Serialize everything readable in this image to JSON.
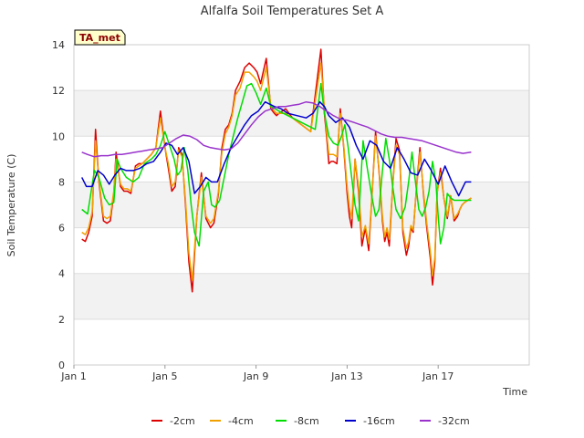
{
  "chart_data": {
    "type": "line",
    "title": "Alfalfa Soil Temperatures Set A",
    "xlabel": "Time",
    "ylabel": "Soil Temperature (C)",
    "tag": "TA_met",
    "xlim": [
      0,
      20
    ],
    "ylim": [
      0,
      14
    ],
    "y_ticks": [
      0,
      2,
      4,
      6,
      8,
      10,
      12,
      14
    ],
    "x_ticks": [
      {
        "value": 0,
        "label": "Jan 1"
      },
      {
        "value": 4,
        "label": "Jan 5"
      },
      {
        "value": 8,
        "label": "Jan 9"
      },
      {
        "value": 12,
        "label": "Jan 13"
      },
      {
        "value": 16,
        "label": "Jan 17"
      }
    ],
    "x_unit": "days since Jan 1",
    "grid": "horizontal bands",
    "legend_position": "bottom",
    "series": [
      {
        "name": "-2cm",
        "color": "#dd0000",
        "x": [
          0.35,
          0.5,
          0.65,
          0.8,
          0.95,
          1.1,
          1.3,
          1.45,
          1.6,
          1.75,
          1.85,
          1.95,
          2.05,
          2.2,
          2.35,
          2.5,
          2.7,
          2.85,
          3.0,
          3.2,
          3.4,
          3.6,
          3.8,
          4.0,
          4.15,
          4.3,
          4.45,
          4.6,
          4.75,
          4.9,
          5.05,
          5.2,
          5.4,
          5.6,
          5.8,
          6.0,
          6.15,
          6.35,
          6.5,
          6.65,
          6.8,
          6.95,
          7.1,
          7.3,
          7.5,
          7.7,
          7.9,
          8.05,
          8.2,
          8.45,
          8.65,
          8.8,
          8.9,
          9.0,
          9.15,
          9.3,
          9.6,
          10.0,
          10.4,
          10.85,
          11.0,
          11.1,
          11.2,
          11.3,
          11.4,
          11.55,
          11.7,
          11.85,
          12.0,
          12.1,
          12.2,
          12.35,
          12.5,
          12.65,
          12.8,
          12.95,
          13.1,
          13.25,
          13.4,
          13.55,
          13.65,
          13.75,
          13.85,
          14.0,
          14.15,
          14.3,
          14.45,
          14.6,
          14.7,
          14.8,
          14.9,
          15.05,
          15.2,
          15.35,
          15.5,
          15.65,
          15.75,
          15.85,
          15.95,
          16.1,
          16.25,
          16.4,
          16.55,
          16.7,
          16.85,
          16.95,
          17.05,
          17.15,
          17.3,
          17.45
        ],
        "values": [
          5.5,
          5.4,
          5.8,
          6.5,
          10.3,
          8.0,
          6.3,
          6.2,
          6.3,
          7.5,
          9.3,
          8.5,
          7.8,
          7.6,
          7.6,
          7.5,
          8.7,
          8.8,
          8.8,
          9.0,
          9.2,
          9.5,
          11.1,
          9.5,
          8.6,
          7.6,
          7.8,
          9.5,
          9.2,
          7.0,
          4.5,
          3.2,
          6.5,
          8.4,
          6.4,
          6.0,
          6.2,
          7.5,
          9.5,
          10.3,
          10.5,
          11.0,
          12.0,
          12.4,
          13.0,
          13.2,
          13.0,
          12.8,
          12.3,
          13.4,
          11.2,
          11.0,
          10.9,
          11.0,
          11.1,
          11.2,
          10.8,
          10.5,
          10.2,
          13.8,
          11.0,
          10.0,
          8.8,
          8.9,
          8.9,
          8.8,
          11.2,
          9.5,
          7.5,
          6.5,
          6.0,
          9.0,
          7.6,
          5.2,
          6.0,
          5.0,
          7.5,
          10.2,
          8.5,
          6.3,
          5.4,
          5.8,
          5.2,
          7.8,
          9.9,
          9.4,
          5.8,
          4.8,
          5.2,
          6.0,
          5.8,
          7.8,
          9.5,
          7.5,
          6.0,
          4.7,
          3.5,
          4.5,
          7.5,
          8.6,
          7.3,
          6.4,
          7.4,
          6.3,
          6.5,
          6.8,
          7.0,
          7.1,
          7.2,
          7.3
        ]
      },
      {
        "name": "-4cm",
        "color": "#f0a000",
        "x": [
          0.35,
          0.5,
          0.65,
          0.8,
          0.95,
          1.1,
          1.3,
          1.45,
          1.6,
          1.75,
          1.85,
          1.95,
          2.05,
          2.2,
          2.35,
          2.5,
          2.7,
          2.85,
          3.0,
          3.2,
          3.4,
          3.6,
          3.8,
          4.0,
          4.15,
          4.3,
          4.45,
          4.6,
          4.75,
          4.9,
          5.05,
          5.2,
          5.4,
          5.6,
          5.8,
          6.0,
          6.15,
          6.35,
          6.5,
          6.65,
          6.8,
          6.95,
          7.1,
          7.3,
          7.5,
          7.7,
          7.9,
          8.05,
          8.2,
          8.45,
          8.65,
          8.8,
          8.9,
          9.0,
          9.15,
          9.3,
          9.6,
          10.0,
          10.4,
          10.85,
          11.0,
          11.1,
          11.2,
          11.3,
          11.4,
          11.55,
          11.7,
          11.85,
          12.0,
          12.1,
          12.2,
          12.35,
          12.5,
          12.65,
          12.8,
          12.95,
          13.1,
          13.25,
          13.4,
          13.55,
          13.65,
          13.75,
          13.85,
          14.0,
          14.15,
          14.3,
          14.45,
          14.6,
          14.7,
          14.8,
          14.9,
          15.05,
          15.2,
          15.35,
          15.5,
          15.65,
          15.75,
          15.85,
          15.95,
          16.1,
          16.25,
          16.4,
          16.55,
          16.7,
          16.85,
          16.95,
          17.05,
          17.15,
          17.3,
          17.45
        ],
        "values": [
          5.8,
          5.7,
          6.0,
          6.7,
          9.8,
          8.1,
          6.5,
          6.4,
          6.5,
          7.6,
          9.0,
          8.5,
          7.9,
          7.7,
          7.7,
          7.6,
          8.6,
          8.7,
          8.8,
          9.0,
          9.2,
          9.5,
          10.8,
          9.5,
          8.8,
          7.8,
          8.0,
          9.4,
          9.1,
          7.2,
          4.9,
          3.7,
          6.5,
          8.2,
          6.5,
          6.2,
          6.4,
          7.6,
          9.3,
          10.1,
          10.4,
          10.9,
          11.8,
          12.1,
          12.8,
          12.8,
          12.6,
          12.4,
          12.0,
          13.0,
          11.3,
          11.1,
          11.0,
          11.0,
          11.0,
          11.0,
          10.8,
          10.5,
          10.2,
          13.2,
          11.2,
          10.2,
          9.2,
          9.2,
          9.2,
          9.1,
          11.0,
          9.6,
          7.8,
          6.9,
          6.4,
          9.0,
          7.8,
          5.6,
          6.1,
          5.3,
          7.5,
          10.0,
          8.6,
          6.5,
          5.6,
          6.0,
          5.5,
          7.8,
          9.6,
          9.2,
          6.0,
          5.1,
          5.4,
          6.1,
          5.9,
          7.7,
          9.3,
          7.6,
          6.2,
          5.0,
          3.9,
          4.7,
          7.5,
          8.4,
          7.3,
          6.5,
          7.4,
          6.4,
          6.6,
          6.8,
          7.0,
          7.1,
          7.2,
          7.3
        ]
      },
      {
        "name": "-8cm",
        "color": "#00dd00",
        "x": [
          0.35,
          0.6,
          0.9,
          1.1,
          1.35,
          1.55,
          1.75,
          1.9,
          2.05,
          2.3,
          2.6,
          2.85,
          3.1,
          3.4,
          3.6,
          3.8,
          4.0,
          4.2,
          4.4,
          4.55,
          4.7,
          4.85,
          5.0,
          5.15,
          5.3,
          5.5,
          5.7,
          5.9,
          6.05,
          6.2,
          6.4,
          6.6,
          6.8,
          7.0,
          7.2,
          7.4,
          7.6,
          7.8,
          8.0,
          8.2,
          8.45,
          8.65,
          8.85,
          9.0,
          9.4,
          9.8,
          10.2,
          10.6,
          10.85,
          11.0,
          11.2,
          11.4,
          11.6,
          11.75,
          11.9,
          12.05,
          12.2,
          12.35,
          12.5,
          12.7,
          12.9,
          13.1,
          13.25,
          13.4,
          13.55,
          13.7,
          13.85,
          14.0,
          14.15,
          14.35,
          14.55,
          14.7,
          14.85,
          15.0,
          15.15,
          15.3,
          15.45,
          15.6,
          15.75,
          15.9,
          16.0,
          16.1,
          16.25,
          16.4,
          16.55,
          16.7,
          16.85,
          17.0,
          17.15,
          17.3,
          17.45
        ],
        "values": [
          6.8,
          6.6,
          8.5,
          8.2,
          7.3,
          7.0,
          7.1,
          9.0,
          8.6,
          8.2,
          8.0,
          8.2,
          8.8,
          9.0,
          9.2,
          9.6,
          10.2,
          9.6,
          9.0,
          8.3,
          8.5,
          9.5,
          8.5,
          7.0,
          5.8,
          5.2,
          7.6,
          8.0,
          7.0,
          6.9,
          7.2,
          8.2,
          9.2,
          10.0,
          10.8,
          11.5,
          12.2,
          12.3,
          11.9,
          11.4,
          12.1,
          11.3,
          11.2,
          11.1,
          10.9,
          10.7,
          10.5,
          10.3,
          12.3,
          11.0,
          10.0,
          9.7,
          9.6,
          10.0,
          10.5,
          9.5,
          8.2,
          7.0,
          6.3,
          9.8,
          8.5,
          7.3,
          6.5,
          6.8,
          8.5,
          9.9,
          9.0,
          7.8,
          6.8,
          6.4,
          6.9,
          8.0,
          9.3,
          8.0,
          6.8,
          6.5,
          6.9,
          7.6,
          8.9,
          8.0,
          6.5,
          5.3,
          6.0,
          7.5,
          7.3,
          7.2,
          7.2,
          7.2,
          7.2,
          7.2,
          7.2
        ]
      },
      {
        "name": "-16cm",
        "color": "#0000cc",
        "x": [
          0.35,
          0.55,
          0.8,
          1.05,
          1.3,
          1.55,
          1.8,
          2.05,
          2.3,
          2.6,
          2.9,
          3.2,
          3.5,
          3.8,
          4.05,
          4.3,
          4.55,
          4.8,
          5.05,
          5.3,
          5.55,
          5.8,
          6.05,
          6.3,
          6.6,
          6.9,
          7.2,
          7.5,
          7.8,
          8.1,
          8.4,
          8.6,
          8.8,
          9.1,
          9.4,
          9.8,
          10.2,
          10.5,
          10.8,
          11.0,
          11.2,
          11.5,
          11.8,
          12.1,
          12.4,
          12.7,
          13.0,
          13.3,
          13.6,
          13.9,
          14.2,
          14.5,
          14.8,
          15.1,
          15.4,
          15.7,
          16.0,
          16.3,
          16.6,
          16.9,
          17.2,
          17.45
        ],
        "values": [
          8.2,
          7.8,
          7.8,
          8.5,
          8.3,
          7.9,
          8.3,
          8.6,
          8.5,
          8.5,
          8.6,
          8.8,
          8.9,
          9.3,
          9.7,
          9.6,
          9.2,
          9.5,
          8.9,
          7.5,
          7.8,
          8.2,
          8.0,
          8.0,
          8.8,
          9.5,
          10.0,
          10.5,
          10.9,
          11.1,
          11.5,
          11.4,
          11.3,
          11.2,
          11.0,
          10.9,
          10.8,
          11.0,
          11.5,
          11.3,
          10.9,
          10.6,
          10.8,
          10.4,
          9.6,
          9.0,
          9.8,
          9.6,
          8.9,
          8.6,
          9.5,
          9.0,
          8.4,
          8.3,
          9.0,
          8.5,
          7.9,
          8.7,
          8.0,
          7.4,
          8.0,
          8.0
        ]
      },
      {
        "name": "-32cm",
        "color": "#9933cc",
        "x": [
          0.35,
          0.6,
          0.9,
          1.2,
          1.5,
          1.8,
          2.1,
          2.4,
          2.7,
          3.0,
          3.3,
          3.6,
          3.9,
          4.2,
          4.5,
          4.8,
          5.1,
          5.4,
          5.7,
          6.0,
          6.3,
          6.6,
          6.9,
          7.2,
          7.5,
          7.8,
          8.1,
          8.4,
          8.7,
          9.0,
          9.3,
          9.6,
          9.9,
          10.2,
          10.5,
          10.8,
          11.1,
          11.4,
          11.7,
          12.0,
          12.3,
          12.6,
          12.9,
          13.2,
          13.5,
          13.8,
          14.1,
          14.4,
          14.7,
          15.0,
          15.3,
          15.6,
          15.9,
          16.2,
          16.5,
          16.8,
          17.1,
          17.45
        ],
        "values": [
          9.3,
          9.2,
          9.1,
          9.15,
          9.15,
          9.2,
          9.2,
          9.25,
          9.3,
          9.35,
          9.4,
          9.45,
          9.5,
          9.7,
          9.9,
          10.05,
          10.0,
          9.85,
          9.6,
          9.5,
          9.45,
          9.4,
          9.45,
          9.7,
          10.1,
          10.5,
          10.85,
          11.1,
          11.2,
          11.3,
          11.3,
          11.35,
          11.4,
          11.5,
          11.45,
          11.3,
          11.1,
          10.9,
          10.75,
          10.7,
          10.6,
          10.5,
          10.4,
          10.25,
          10.1,
          10.0,
          9.95,
          9.95,
          9.9,
          9.85,
          9.8,
          9.7,
          9.6,
          9.5,
          9.4,
          9.3,
          9.25,
          9.3
        ]
      }
    ]
  }
}
